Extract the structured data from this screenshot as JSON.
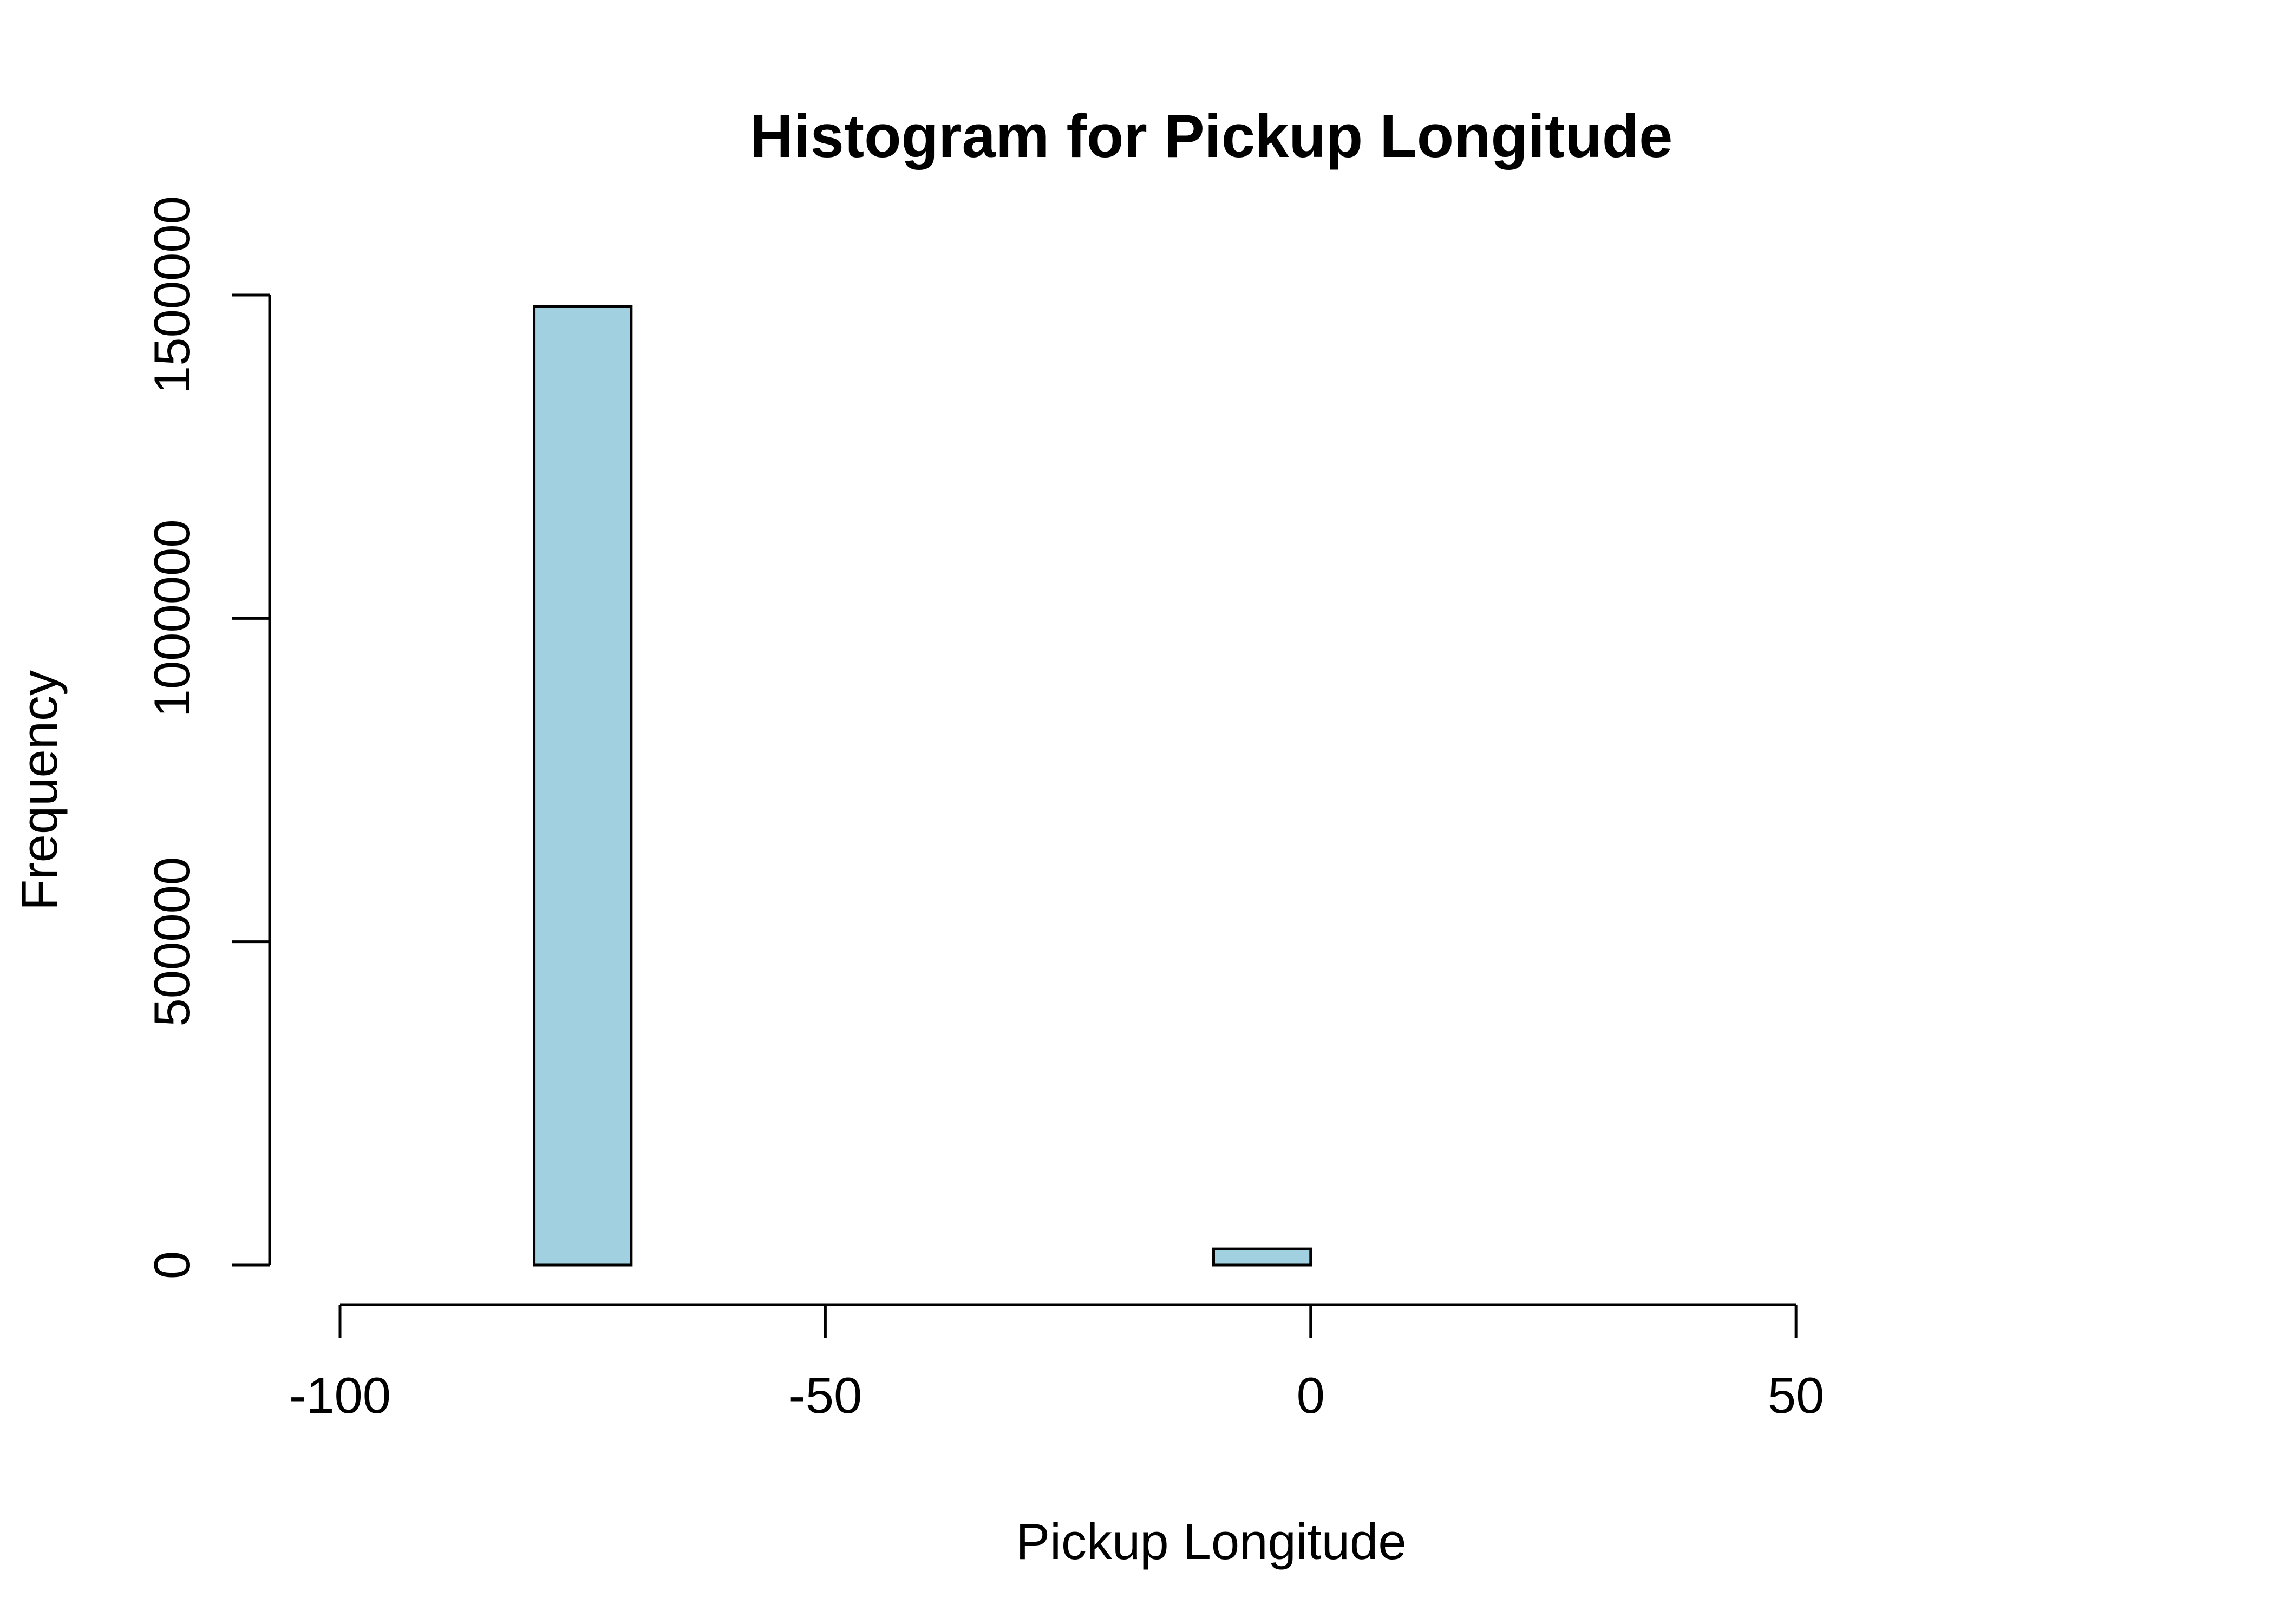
{
  "chart_data": {
    "type": "bar",
    "title": "Histogram for Pickup Longitude",
    "xlabel": "Pickup Longitude",
    "ylabel": "Frequency",
    "bin_width": 10,
    "xlim": [
      -100,
      80
    ],
    "ylim": [
      0,
      1500000
    ],
    "xticks": [
      -100,
      -50,
      0,
      50
    ],
    "yticks": [
      0,
      500000,
      1000000,
      1500000
    ],
    "bins": [
      {
        "x0": -100,
        "x1": -90,
        "count": 0
      },
      {
        "x0": -90,
        "x1": -80,
        "count": 0
      },
      {
        "x0": -80,
        "x1": -70,
        "count": 1482000
      },
      {
        "x0": -70,
        "x1": -60,
        "count": 0
      },
      {
        "x0": -60,
        "x1": -50,
        "count": 0
      },
      {
        "x0": -50,
        "x1": -40,
        "count": 0
      },
      {
        "x0": -40,
        "x1": -30,
        "count": 0
      },
      {
        "x0": -30,
        "x1": -20,
        "count": 0
      },
      {
        "x0": -20,
        "x1": -10,
        "count": 0
      },
      {
        "x0": -10,
        "x1": 0,
        "count": 25000
      },
      {
        "x0": 0,
        "x1": 10,
        "count": 0
      },
      {
        "x0": 10,
        "x1": 20,
        "count": 0
      },
      {
        "x0": 20,
        "x1": 30,
        "count": 0
      },
      {
        "x0": 30,
        "x1": 40,
        "count": 0
      },
      {
        "x0": 40,
        "x1": 50,
        "count": 0
      },
      {
        "x0": 50,
        "x1": 60,
        "count": 0
      },
      {
        "x0": 60,
        "x1": 70,
        "count": 0
      },
      {
        "x0": 70,
        "x1": 80,
        "count": 0
      }
    ],
    "colors": {
      "bar_fill": "#a1d0e0",
      "bar_stroke": "#000000"
    },
    "grid": false,
    "legend": "none"
  }
}
